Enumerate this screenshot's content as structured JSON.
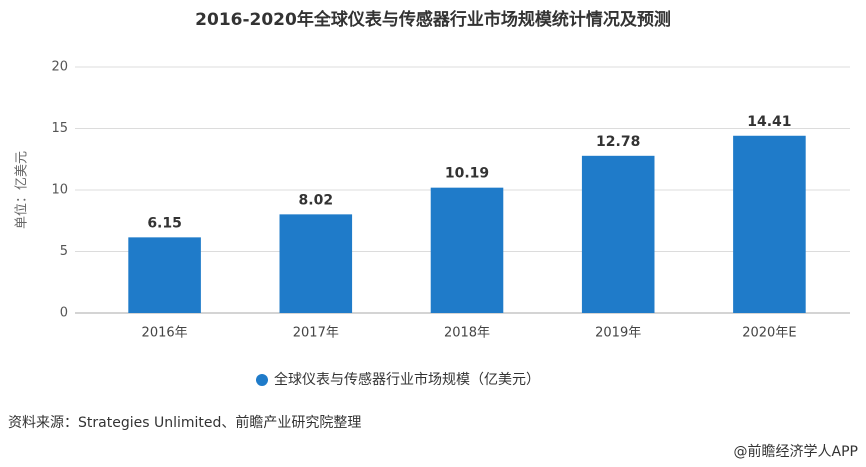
{
  "chart_data": {
    "type": "bar",
    "title": "2016-2020年全球仪表与传感器行业市场规模统计情况及预测",
    "y_label": "单位：亿美元",
    "categories": [
      "2016年",
      "2017年",
      "2018年",
      "2019年",
      "2020年E"
    ],
    "series": [
      {
        "name": "全球仪表与传感器行业市场规模（亿美元）",
        "color": "#1f7bc9",
        "values": [
          6.15,
          8.02,
          10.19,
          12.78,
          14.41
        ]
      }
    ],
    "ylim": [
      0,
      20
    ],
    "yticks": [
      0,
      5,
      10,
      15,
      20
    ],
    "grid": true,
    "legend": "bottom"
  },
  "source": "资料来源：Strategies Unlimited、前瞻产业研究院整理",
  "credit": "@前瞻经济学人APP"
}
